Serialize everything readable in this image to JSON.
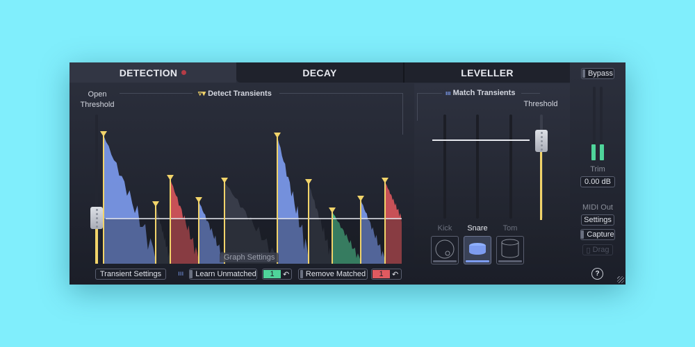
{
  "tabs": [
    {
      "label": "DETECTION",
      "active": true
    },
    {
      "label": "DECAY"
    },
    {
      "label": "LEVELLER"
    }
  ],
  "detection": {
    "open_threshold": "Open\nThreshold",
    "detect_transients": "Detect Transients",
    "graph_settings": "Graph Settings",
    "transient_settings": "Transient Settings",
    "learn_unmatched": "Learn Unmatched",
    "learn_count": "1",
    "remove_matched": "Remove Matched",
    "remove_count": "1",
    "transients": [
      "snare",
      "other",
      "kick",
      "snare",
      "other",
      "snare",
      "other",
      "tom",
      "snare",
      "kick"
    ]
  },
  "match": {
    "title": "Match Transients",
    "threshold": "Threshold",
    "drums": [
      {
        "label": "Kick",
        "selected": false
      },
      {
        "label": "Snare",
        "selected": true
      },
      {
        "label": "Tom",
        "selected": false
      }
    ]
  },
  "side": {
    "bypass": "Bypass",
    "trim_label": "Trim",
    "trim_value": "0.00 dB",
    "midi_out": "MIDI Out",
    "settings": "Settings",
    "capture": "Capture",
    "drag": "Drag",
    "help": "?"
  },
  "colors": {
    "kick": "#d9575c",
    "snare": "#7d9cf0",
    "tom": "#4fc38e",
    "other": "#3b3f4d",
    "marker": "#f2d46a",
    "learn": "#4fd49a",
    "remove": "#e05a60",
    "background": "#80eefc"
  }
}
